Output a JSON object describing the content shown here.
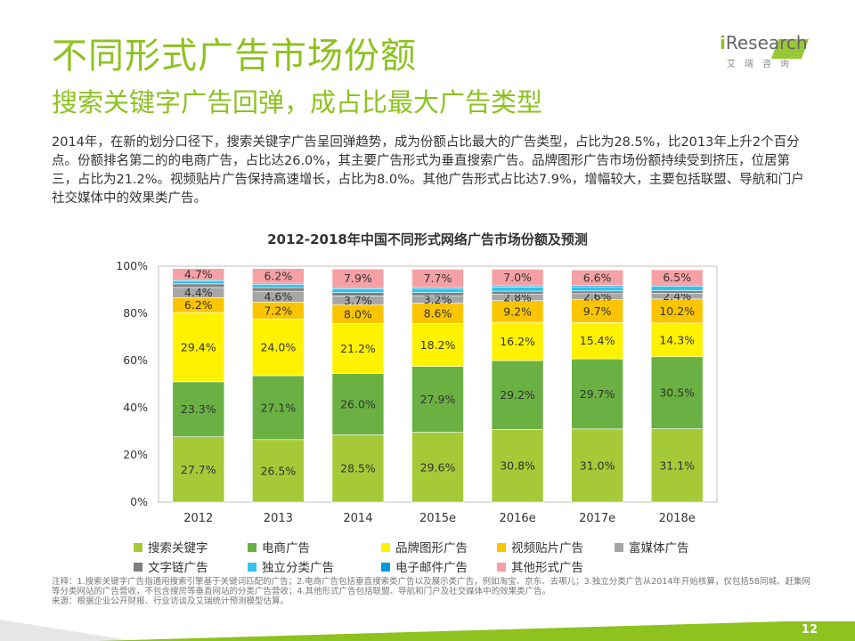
{
  "header": {
    "title": "不同形式广告市场份额",
    "subtitle": "搜索关键字广告回弹，成占比最大广告类型",
    "logo_text_prefix": "i",
    "logo_text_main": "Research",
    "logo_sub": "艾瑞咨询"
  },
  "description": "2014年，在新的划分口径下，搜索关键字广告呈回弹趋势，成为份额占比最大的广告类型，占比为28.5%，比2013年上升2个百分点。份额排名第二的的电商广告，占比达26.0%，其主要广告形式为垂直搜索广告。品牌图形广告市场份额持续受到挤压，位居第三，占比为21.2%。视频贴片广告保持高速增长，占比为8.0%。其他广告形式占比达7.9%，增幅较大，主要包括联盟、导航和门户社交媒体中的效果类广告。",
  "chart_data": {
    "type": "bar",
    "stacked": true,
    "title": "2012-2018年中国不同形式网络广告市场份额及预测",
    "categories": [
      "2012",
      "2013",
      "2014",
      "2015e",
      "2016e",
      "2017e",
      "2018e"
    ],
    "ylim": [
      0,
      100
    ],
    "y_ticks": [
      "0%",
      "20%",
      "40%",
      "60%",
      "80%",
      "100%"
    ],
    "legend_position": "bottom",
    "series": [
      {
        "name": "搜索关键字",
        "color": "#a6c938",
        "values": [
          27.7,
          26.5,
          28.5,
          29.6,
          30.8,
          31.0,
          31.1
        ],
        "labels": [
          "27.7%",
          "26.5%",
          "28.5%",
          "29.6%",
          "30.8%",
          "31.0%",
          "31.1%"
        ]
      },
      {
        "name": "电商广告",
        "color": "#6ab042",
        "values": [
          23.3,
          27.1,
          26.0,
          27.9,
          29.2,
          29.7,
          30.5
        ],
        "labels": [
          "23.3%",
          "27.1%",
          "26.0%",
          "27.9%",
          "29.2%",
          "29.7%",
          "30.5%"
        ]
      },
      {
        "name": "品牌图形广告",
        "color": "#fff200",
        "values": [
          29.4,
          24.0,
          21.2,
          18.2,
          16.2,
          15.4,
          14.3
        ],
        "labels": [
          "29.4%",
          "24.0%",
          "21.2%",
          "18.2%",
          "16.2%",
          "15.4%",
          "14.3%"
        ]
      },
      {
        "name": "视频贴片广告",
        "color": "#fbc400",
        "values": [
          6.2,
          7.2,
          8.0,
          8.6,
          9.2,
          9.7,
          10.2
        ],
        "labels": [
          "6.2%",
          "7.2%",
          "8.0%",
          "8.6%",
          "9.2%",
          "9.7%",
          "10.2%"
        ]
      },
      {
        "name": "富媒体广告",
        "color": "#a6a6a6",
        "values": [
          4.4,
          4.6,
          3.7,
          3.2,
          2.8,
          2.6,
          2.4
        ],
        "labels": [
          "4.4%",
          "4.6%",
          "3.7%",
          "3.2%",
          "2.8%",
          "2.6%",
          "2.4%"
        ]
      },
      {
        "name": "文字链广告",
        "color": "#7f7f7f",
        "values": [
          1.5,
          1.5,
          1.4,
          1.3,
          1.2,
          1.1,
          1.1
        ],
        "labels": [
          "",
          "",
          "",
          "",
          "",
          "",
          ""
        ]
      },
      {
        "name": "独立分类广告",
        "color": "#33c3e8",
        "values": [
          1.3,
          1.4,
          1.6,
          1.7,
          1.8,
          1.8,
          1.9
        ],
        "labels": [
          "",
          "",
          "",
          "",
          "",
          "",
          ""
        ]
      },
      {
        "name": "电子邮件广告",
        "color": "#0098d8",
        "values": [
          0.5,
          0.5,
          0.5,
          0.5,
          0.5,
          0.5,
          0.5
        ],
        "labels": [
          "",
          "",
          "",
          "",
          "",
          "",
          ""
        ]
      },
      {
        "name": "其他形式广告",
        "color": "#f5a0a4",
        "values": [
          4.7,
          6.2,
          7.9,
          7.7,
          7.0,
          6.6,
          6.5
        ],
        "labels": [
          "4.7%",
          "6.2%",
          "7.9%",
          "7.7%",
          "7.0%",
          "6.6%",
          "6.5%"
        ]
      }
    ]
  },
  "notes": [
    "注释：1.搜索关键字广告指通用搜索引擎基于关键词匹配的广告；2.电商广告包括垂直搜索类广告以及展示类广告，例如淘宝、京东、去哪儿；3.独立分类广告从2014年开始核算，仅包括58同城、赶集网等分类网站的广告营收，不包含搜房等垂直网站的分类广告营收；4.其他形式广告包括联盟、导航和门户及社交媒体中的效果类广告。",
    "来源：根据企业公开财报、行业访谈及艾瑞统计预测模型估算。"
  ],
  "footer": {
    "page_number": "12"
  },
  "colors": {
    "brand_green": "#8dc21f"
  }
}
